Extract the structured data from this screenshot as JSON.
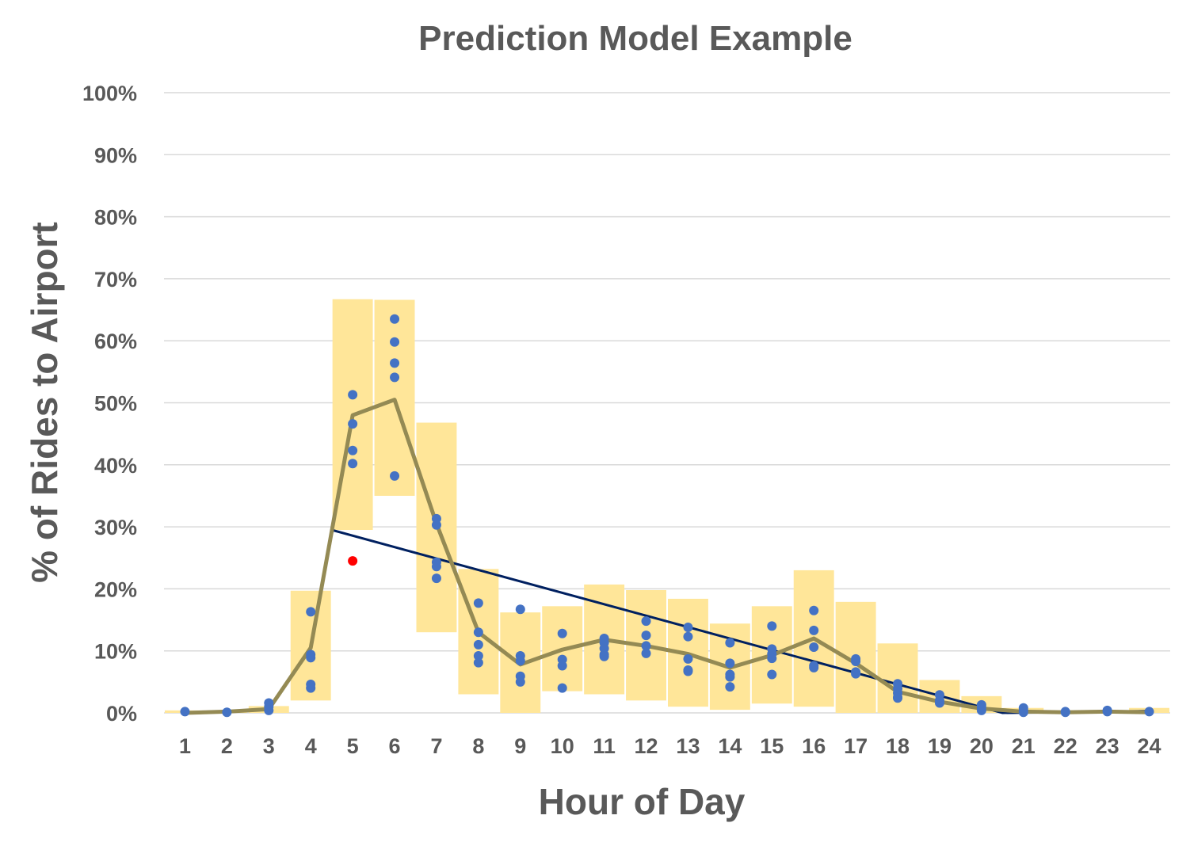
{
  "chart_data": {
    "type": "line",
    "title": "Prediction Model Example",
    "xlabel": "Hour of Day",
    "ylabel": "% of Rides to Airport",
    "categories": [
      "1",
      "2",
      "3",
      "4",
      "5",
      "6",
      "7",
      "8",
      "9",
      "10",
      "11",
      "12",
      "13",
      "14",
      "15",
      "16",
      "17",
      "18",
      "19",
      "20",
      "21",
      "22",
      "23",
      "24"
    ],
    "y_ticks": [
      "0%",
      "10%",
      "20%",
      "30%",
      "40%",
      "50%",
      "60%",
      "70%",
      "80%",
      "90%",
      "100%"
    ],
    "ylim": [
      0,
      100
    ],
    "grid": true,
    "colors": {
      "band": "#FFE699",
      "prediction_line": "#948A54",
      "observations": "#4472C4",
      "outlier": "#FF0000",
      "actual_line": "#002060",
      "gridline": "#D9D9D9"
    },
    "prediction_band": {
      "lower": [
        0,
        0,
        0,
        2,
        29.5,
        35,
        13,
        3,
        0,
        3.5,
        3,
        2,
        1,
        0.5,
        1.5,
        1,
        0,
        0,
        0,
        0,
        0,
        0,
        0,
        0
      ],
      "upper": [
        0.4,
        0.4,
        1.1,
        19.7,
        66.7,
        66.6,
        46.8,
        23.2,
        16.2,
        17.2,
        20.7,
        19.8,
        18.4,
        14.4,
        17.2,
        23,
        17.9,
        11.2,
        5.3,
        2.7,
        0.8,
        0.4,
        0.4,
        0.8
      ]
    },
    "prediction_line": [
      0,
      0.2,
      0.6,
      10.5,
      48,
      50.5,
      30.5,
      13,
      7.8,
      10.2,
      11.8,
      10.8,
      9.5,
      7.3,
      9.3,
      12,
      8,
      3.4,
      1.8,
      0.7,
      0.2,
      0.1,
      0.2,
      0.1
    ],
    "observations": [
      {
        "x": 1,
        "y": [
          0.2
        ]
      },
      {
        "x": 2,
        "y": [
          0.1
        ]
      },
      {
        "x": 3,
        "y": [
          0.4,
          1.0,
          1.6
        ]
      },
      {
        "x": 4,
        "y": [
          16.3,
          9.4,
          8.9,
          4.6,
          4.0
        ]
      },
      {
        "x": 5,
        "y": [
          51.3,
          46.6,
          42.3,
          40.2
        ]
      },
      {
        "x": 6,
        "y": [
          63.5,
          59.8,
          56.4,
          54.1,
          38.2
        ]
      },
      {
        "x": 7,
        "y": [
          31.3,
          30.3,
          24.3,
          23.6,
          21.7
        ]
      },
      {
        "x": 8,
        "y": [
          17.7,
          13.0,
          11.0,
          9.2,
          8.1
        ]
      },
      {
        "x": 9,
        "y": [
          16.7,
          9.2,
          8.4,
          5.9,
          5.0
        ]
      },
      {
        "x": 10,
        "y": [
          12.8,
          8.6,
          7.6,
          4.0
        ]
      },
      {
        "x": 11,
        "y": [
          12.0,
          11.3,
          10.4,
          9.4,
          9.1
        ]
      },
      {
        "x": 12,
        "y": [
          14.8,
          12.5,
          10.8,
          9.6
        ]
      },
      {
        "x": 13,
        "y": [
          13.8,
          12.3,
          8.7,
          6.9,
          6.7
        ]
      },
      {
        "x": 14,
        "y": [
          11.3,
          8.0,
          6.2,
          5.8,
          4.2
        ]
      },
      {
        "x": 15,
        "y": [
          14.0,
          10.3,
          9.5,
          8.8,
          6.2
        ]
      },
      {
        "x": 16,
        "y": [
          16.5,
          13.3,
          10.6,
          7.6,
          7.3
        ]
      },
      {
        "x": 17,
        "y": [
          8.7,
          8.3,
          6.6,
          6.3
        ]
      },
      {
        "x": 18,
        "y": [
          4.7,
          3.9,
          3.2,
          2.5,
          2.4
        ]
      },
      {
        "x": 19,
        "y": [
          2.9,
          2.0,
          1.6
        ]
      },
      {
        "x": 20,
        "y": [
          1.3,
          0.9,
          0.4
        ]
      },
      {
        "x": 21,
        "y": [
          0.8,
          0.4,
          0.1
        ]
      },
      {
        "x": 22,
        "y": [
          0.2,
          0.1
        ]
      },
      {
        "x": 23,
        "y": [
          0.4,
          0.2
        ]
      },
      {
        "x": 24,
        "y": [
          0.2
        ]
      }
    ],
    "outlier": {
      "x": 5,
      "y": 24.5
    },
    "actual_line": [
      {
        "x": 1,
        "y": 0
      },
      {
        "x": 2,
        "y": 0.2
      },
      {
        "x": 3,
        "y": 0.5
      },
      {
        "x": 4,
        "y": 10.5
      },
      {
        "x": 4.5,
        "y": 29.5
      },
      {
        "x": 20.5,
        "y": 0
      },
      {
        "x": 24,
        "y": 0.3
      }
    ]
  }
}
